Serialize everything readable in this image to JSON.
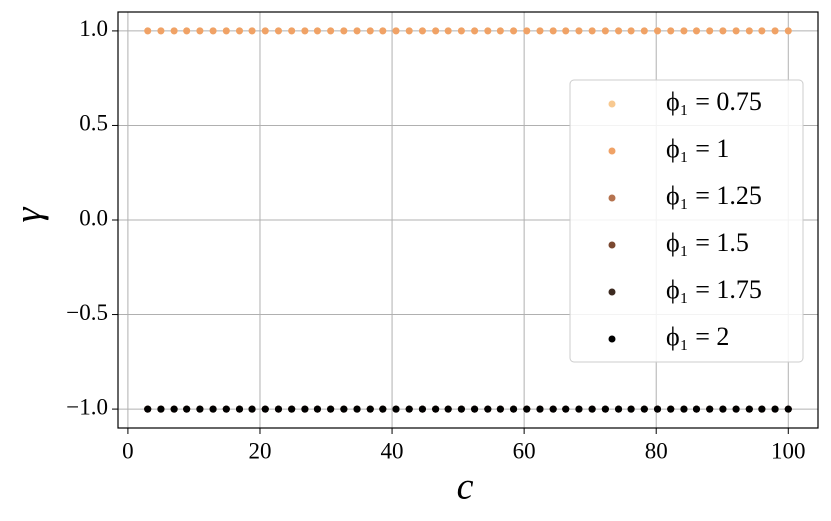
{
  "chart_data": {
    "type": "scatter",
    "xlabel": "c",
    "ylabel": "γ",
    "x": [
      3.0,
      5.0,
      7.0,
      8.9,
      10.9,
      12.9,
      14.9,
      16.9,
      18.8,
      20.8,
      22.8,
      24.8,
      26.8,
      28.7,
      30.7,
      32.7,
      34.7,
      36.7,
      38.6,
      40.6,
      42.6,
      44.6,
      46.6,
      48.5,
      50.5,
      52.5,
      54.5,
      56.4,
      58.4,
      60.4,
      62.4,
      64.4,
      66.3,
      68.3,
      70.3,
      72.3,
      74.3,
      76.2,
      78.2,
      80.2,
      82.2,
      84.2,
      86.1,
      88.1,
      90.1,
      92.1,
      94.1,
      96.0,
      98.0,
      100.0
    ],
    "series": [
      {
        "name": "ϕ₁ = 0.75",
        "color": "#f8c990",
        "values": [
          1,
          1,
          1,
          1,
          1,
          1,
          1,
          1,
          1,
          1,
          1,
          1,
          1,
          1,
          1,
          1,
          1,
          1,
          1,
          1,
          1,
          1,
          1,
          1,
          1,
          1,
          1,
          1,
          1,
          1,
          1,
          1,
          1,
          1,
          1,
          1,
          1,
          1,
          1,
          1,
          1,
          1,
          1,
          1,
          1,
          1,
          1,
          1,
          1,
          1
        ]
      },
      {
        "name": "ϕ₁ = 1",
        "color": "#f0a266",
        "values": [
          1,
          1,
          1,
          1,
          1,
          1,
          1,
          1,
          1,
          1,
          1,
          1,
          1,
          1,
          1,
          1,
          1,
          1,
          1,
          1,
          1,
          1,
          1,
          1,
          1,
          1,
          1,
          1,
          1,
          1,
          1,
          1,
          1,
          1,
          1,
          1,
          1,
          1,
          1,
          1,
          1,
          1,
          1,
          1,
          1,
          1,
          1,
          1,
          1,
          1
        ]
      },
      {
        "name": "ϕ₁ = 1.25",
        "color": "#b5734f",
        "values": [
          -1,
          -1,
          -1,
          -1,
          -1,
          -1,
          -1,
          -1,
          -1,
          -1,
          -1,
          -1,
          -1,
          -1,
          -1,
          -1,
          -1,
          -1,
          -1,
          -1,
          -1,
          -1,
          -1,
          -1,
          -1,
          -1,
          -1,
          -1,
          -1,
          -1,
          -1,
          -1,
          -1,
          -1,
          -1,
          -1,
          -1,
          -1,
          -1,
          -1,
          -1,
          -1,
          -1,
          -1,
          -1,
          -1,
          -1,
          -1,
          -1,
          -1
        ]
      },
      {
        "name": "ϕ₁ = 1.5",
        "color": "#7a4830",
        "values": [
          -1,
          -1,
          -1,
          -1,
          -1,
          -1,
          -1,
          -1,
          -1,
          -1,
          -1,
          -1,
          -1,
          -1,
          -1,
          -1,
          -1,
          -1,
          -1,
          -1,
          -1,
          -1,
          -1,
          -1,
          -1,
          -1,
          -1,
          -1,
          -1,
          -1,
          -1,
          -1,
          -1,
          -1,
          -1,
          -1,
          -1,
          -1,
          -1,
          -1,
          -1,
          -1,
          -1,
          -1,
          -1,
          -1,
          -1,
          -1,
          -1,
          -1
        ]
      },
      {
        "name": "ϕ₁ = 1.75",
        "color": "#3c2a20",
        "values": [
          -1,
          -1,
          -1,
          -1,
          -1,
          -1,
          -1,
          -1,
          -1,
          -1,
          -1,
          -1,
          -1,
          -1,
          -1,
          -1,
          -1,
          -1,
          -1,
          -1,
          -1,
          -1,
          -1,
          -1,
          -1,
          -1,
          -1,
          -1,
          -1,
          -1,
          -1,
          -1,
          -1,
          -1,
          -1,
          -1,
          -1,
          -1,
          -1,
          -1,
          -1,
          -1,
          -1,
          -1,
          -1,
          -1,
          -1,
          -1,
          -1,
          -1
        ]
      },
      {
        "name": "ϕ₁ = 2",
        "color": "#000000",
        "values": [
          -1,
          -1,
          -1,
          -1,
          -1,
          -1,
          -1,
          -1,
          -1,
          -1,
          -1,
          -1,
          -1,
          -1,
          -1,
          -1,
          -1,
          -1,
          -1,
          -1,
          -1,
          -1,
          -1,
          -1,
          -1,
          -1,
          -1,
          -1,
          -1,
          -1,
          -1,
          -1,
          -1,
          -1,
          -1,
          -1,
          -1,
          -1,
          -1,
          -1,
          -1,
          -1,
          -1,
          -1,
          -1,
          -1,
          -1,
          -1,
          -1,
          -1
        ]
      }
    ],
    "xlim": [
      -1.5,
      104.5
    ],
    "ylim": [
      -1.1,
      1.1
    ],
    "xticks": [
      0,
      20,
      40,
      60,
      80,
      100
    ],
    "yticks": [
      {
        "value": -1,
        "label": "−1.0"
      },
      {
        "value": -0.5,
        "label": "−0.5"
      },
      {
        "value": 0,
        "label": "0.0"
      },
      {
        "value": 0.5,
        "label": "0.5"
      },
      {
        "value": 1,
        "label": "1.0"
      }
    ],
    "grid": true,
    "legend": "right"
  }
}
